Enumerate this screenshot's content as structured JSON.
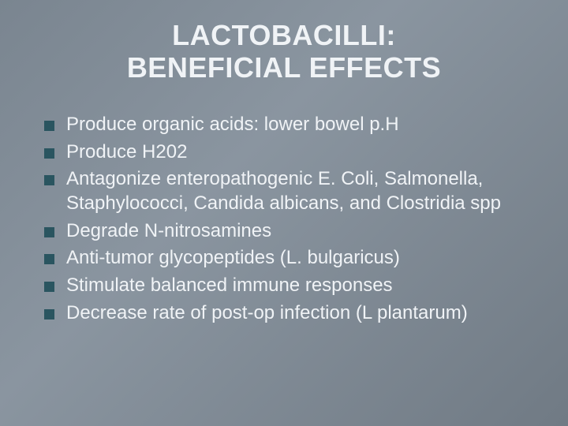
{
  "background": {
    "gradient_start": "#7a8590",
    "gradient_mid": "#8a95a0",
    "gradient_end": "#707a84"
  },
  "title": {
    "line1": "LACTOBACILLI:",
    "line2": "BENEFICIAL EFFECTS",
    "fontsize": 36,
    "color": "#f0f3f6",
    "weight": "bold"
  },
  "bullets": {
    "fontsize": 24,
    "color": "#f0f3f6",
    "square_color": "#2a5560",
    "square_size": 13,
    "items": [
      "Produce organic acids:  lower bowel p.H",
      "Produce H202",
      "Antagonize enteropathogenic E. Coli, Salmonella, Staphylococci, Candida albicans, and Clostridia spp",
      "Degrade N-nitrosamines",
      "Anti-tumor glycopeptides (L. bulgaricus)",
      "Stimulate balanced immune responses",
      "Decrease rate of post-op infection (L plantarum)"
    ]
  }
}
